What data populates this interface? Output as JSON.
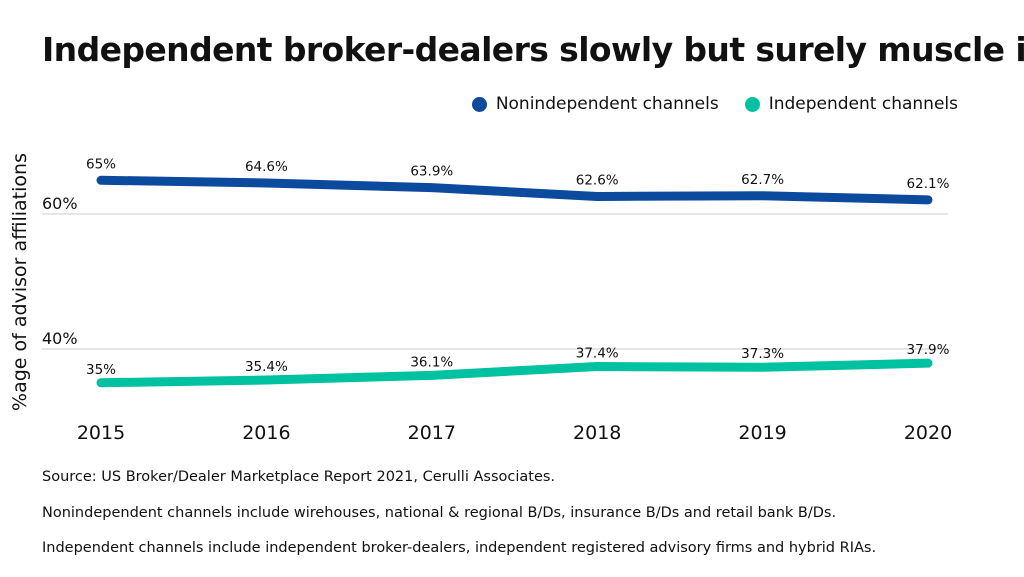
{
  "chart_data": {
    "type": "line",
    "title": "Independent broker-dealers slowly but surely muscle in",
    "ylabel": "%age of advisor affiliations",
    "xlabel": "",
    "categories": [
      "2015",
      "2016",
      "2017",
      "2018",
      "2019",
      "2020"
    ],
    "y_ticks": [
      {
        "value": 40,
        "label": "40%"
      },
      {
        "value": 60,
        "label": "60%"
      }
    ],
    "grid": "horizontal at ticks",
    "legend_position": "top-right",
    "series": [
      {
        "name": "Nonindependent channels",
        "color": "#0b4a9c",
        "values": [
          65,
          64.6,
          63.9,
          62.6,
          62.7,
          62.1
        ],
        "labels": [
          "65%",
          "64.6%",
          "63.9%",
          "62.6%",
          "62.7%",
          "62.1%"
        ]
      },
      {
        "name": "Independent channels",
        "color": "#00c2a0",
        "values": [
          35,
          35.4,
          36.1,
          37.4,
          37.3,
          37.9
        ],
        "labels": [
          "35%",
          "35.4%",
          "36.1%",
          "37.4%",
          "37.3%",
          "37.9%"
        ]
      }
    ]
  },
  "footnotes": {
    "source": "Source: US Broker/Dealer Marketplace Report 2021, Cerulli Associates.",
    "nonindependent_note": "Nonindependent channels include wirehouses, national & regional B/Ds, insurance B/Ds and retail bank B/Ds.",
    "independent_note": "Independent channels include independent broker-dealers, independent registered advisory firms and hybrid RIAs."
  }
}
